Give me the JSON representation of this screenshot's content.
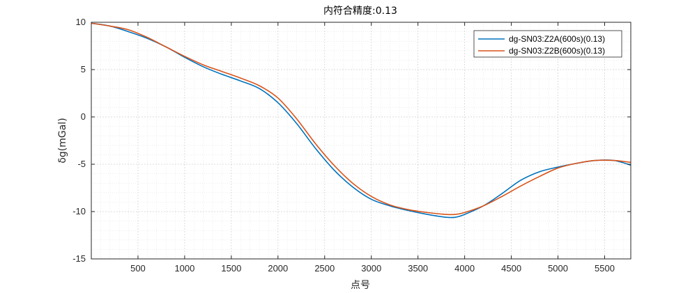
{
  "chart_data": {
    "type": "line",
    "title": "内符合精度:0.13",
    "xlabel": "点号",
    "ylabel": "δg(mGal)",
    "xlim": [
      0,
      5780
    ],
    "ylim": [
      -15,
      10
    ],
    "xticks": [
      500,
      1000,
      1500,
      2000,
      2500,
      3000,
      3500,
      4000,
      4500,
      5000,
      5500
    ],
    "yticks": [
      10,
      5,
      0,
      -5,
      -10,
      -15
    ],
    "grid": true,
    "minor_grid": true,
    "legend_position": "top-right",
    "series": [
      {
        "name": "dg-SN03:Z2A(600s)(0.13)",
        "color": "#0072BD",
        "x": [
          0,
          200,
          400,
          600,
          800,
          1000,
          1200,
          1400,
          1600,
          1800,
          2000,
          2200,
          2400,
          2600,
          2800,
          3000,
          3200,
          3400,
          3600,
          3800,
          3900,
          4000,
          4200,
          4400,
          4600,
          4800,
          5000,
          5200,
          5400,
          5600,
          5780
        ],
        "y": [
          9.9,
          9.6,
          9.0,
          8.3,
          7.4,
          6.3,
          5.3,
          4.5,
          3.8,
          3.0,
          1.5,
          -0.7,
          -3.3,
          -5.6,
          -7.4,
          -8.7,
          -9.4,
          -9.9,
          -10.3,
          -10.6,
          -10.6,
          -10.3,
          -9.4,
          -8.1,
          -6.7,
          -5.8,
          -5.3,
          -4.9,
          -4.6,
          -4.6,
          -5.1
        ]
      },
      {
        "name": "dg-SN03:Z2B(600s)(0.13)",
        "color": "#D95319",
        "x": [
          0,
          200,
          400,
          600,
          800,
          1000,
          1200,
          1400,
          1600,
          1800,
          2000,
          2200,
          2400,
          2600,
          2800,
          3000,
          3200,
          3400,
          3600,
          3800,
          3900,
          4000,
          4200,
          4400,
          4600,
          4800,
          5000,
          5200,
          5400,
          5600,
          5780
        ],
        "y": [
          9.9,
          9.6,
          9.2,
          8.4,
          7.4,
          6.4,
          5.5,
          4.8,
          4.1,
          3.3,
          2.0,
          -0.2,
          -2.8,
          -5.1,
          -7.0,
          -8.4,
          -9.3,
          -9.8,
          -10.1,
          -10.3,
          -10.3,
          -10.1,
          -9.4,
          -8.4,
          -7.3,
          -6.3,
          -5.4,
          -4.9,
          -4.6,
          -4.6,
          -4.8
        ]
      }
    ]
  }
}
